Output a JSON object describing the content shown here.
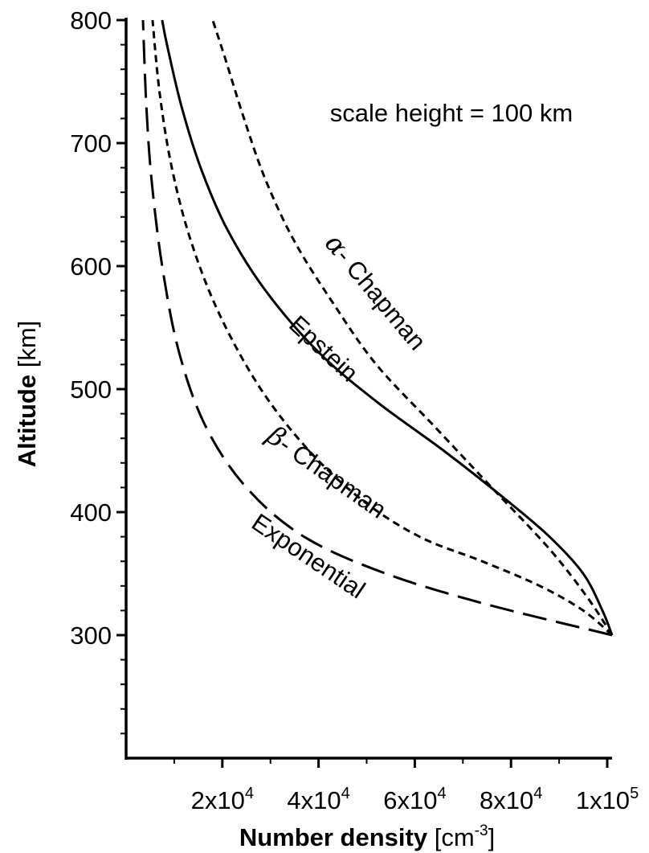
{
  "chart_data": {
    "type": "line",
    "annotation": "scale height = 100 km",
    "xlabel": {
      "bold": "Number density",
      "unit_pre": " [cm",
      "unit_sup": "-3",
      "unit_post": "]"
    },
    "ylabel": {
      "bold": "Altitude",
      "unit": " [km]"
    },
    "xlim": [
      0,
      101000
    ],
    "ylim": [
      200,
      800
    ],
    "x_ticks": [
      {
        "value": 20000,
        "mantissa": "2x10",
        "exp": "4"
      },
      {
        "value": 40000,
        "mantissa": "4x10",
        "exp": "4"
      },
      {
        "value": 60000,
        "mantissa": "6x10",
        "exp": "4"
      },
      {
        "value": 80000,
        "mantissa": "8x10",
        "exp": "4"
      },
      {
        "value": 100000,
        "mantissa": "1x10",
        "exp": "5"
      }
    ],
    "y_ticks": [
      {
        "value": 300,
        "label": "300"
      },
      {
        "value": 400,
        "label": "400"
      },
      {
        "value": 500,
        "label": "500"
      },
      {
        "value": 600,
        "label": "600"
      },
      {
        "value": 700,
        "label": "700"
      },
      {
        "value": 800,
        "label": "800"
      }
    ],
    "series": [
      {
        "key": "alpha-chapman",
        "greek": "α",
        "name": "- Chapman",
        "dash": "dense",
        "points": [
          [
            101000,
            300
          ],
          [
            96000,
            330
          ],
          [
            88000,
            370
          ],
          [
            76000,
            420
          ],
          [
            64000,
            470
          ],
          [
            52000,
            520
          ],
          [
            43000,
            570
          ],
          [
            35000,
            620
          ],
          [
            29000,
            670
          ],
          [
            24500,
            720
          ],
          [
            20500,
            770
          ],
          [
            18000,
            800
          ]
        ]
      },
      {
        "key": "epstein",
        "name": "Epstein",
        "dash": "solid",
        "points": [
          [
            101000,
            300
          ],
          [
            99000,
            320
          ],
          [
            95000,
            350
          ],
          [
            88000,
            380
          ],
          [
            79000,
            410
          ],
          [
            66000,
            450
          ],
          [
            52000,
            490
          ],
          [
            40000,
            530
          ],
          [
            29000,
            580
          ],
          [
            21000,
            630
          ],
          [
            15500,
            680
          ],
          [
            11500,
            730
          ],
          [
            8500,
            780
          ],
          [
            7500,
            800
          ]
        ]
      },
      {
        "key": "beta-chapman",
        "greek": "β",
        "name": "- Chapman",
        "dash": "dense",
        "points": [
          [
            101000,
            300
          ],
          [
            95000,
            320
          ],
          [
            86000,
            340
          ],
          [
            74000,
            360
          ],
          [
            61000,
            380
          ],
          [
            49000,
            410
          ],
          [
            38000,
            450
          ],
          [
            28000,
            500
          ],
          [
            19500,
            560
          ],
          [
            13500,
            620
          ],
          [
            9500,
            680
          ],
          [
            7000,
            740
          ],
          [
            5500,
            800
          ]
        ]
      },
      {
        "key": "exponential",
        "name": "Exponential",
        "dash": "long",
        "points": [
          [
            101000,
            300
          ],
          [
            75000,
            325
          ],
          [
            54000,
            350
          ],
          [
            37000,
            380
          ],
          [
            25000,
            420
          ],
          [
            16500,
            470
          ],
          [
            11000,
            530
          ],
          [
            7500,
            600
          ],
          [
            5300,
            670
          ],
          [
            4200,
            730
          ],
          [
            3500,
            800
          ]
        ]
      }
    ]
  }
}
